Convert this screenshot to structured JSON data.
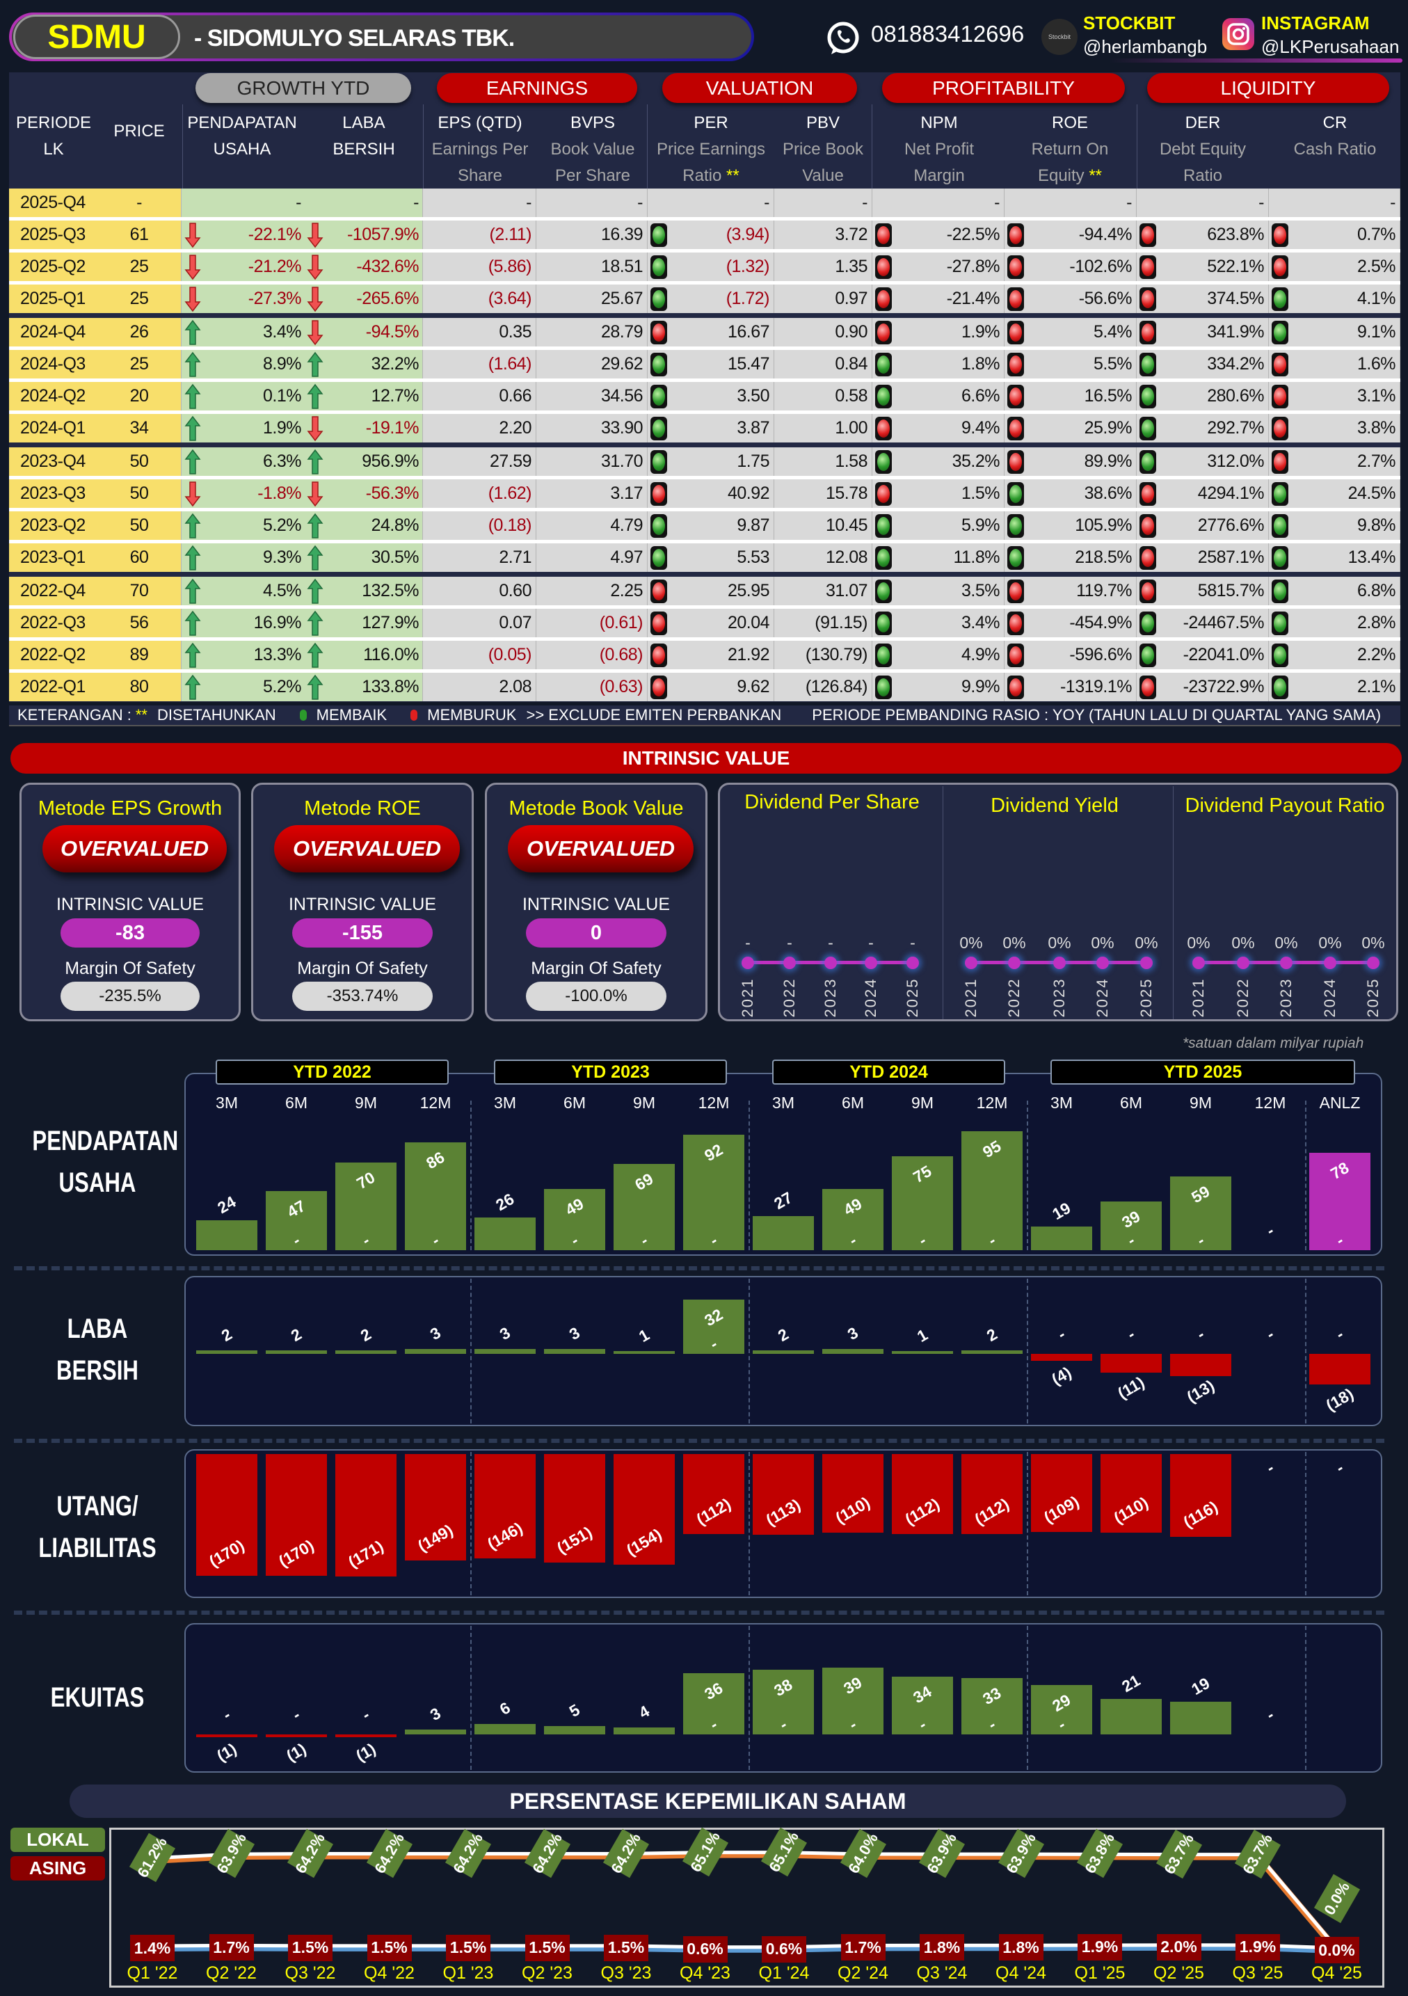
{
  "header": {
    "ticker": "SDMU",
    "company": "- SIDOMULYO SELARAS TBK.",
    "phone": "081883412696",
    "stockbit_logo": "Stockbit",
    "stockbit_label": "STOCKBIT",
    "stockbit_handle": "@herlambangb",
    "instagram_label": "INSTAGRAM",
    "instagram_handle": "@LKPerusahaan"
  },
  "table": {
    "groups": [
      "GROWTH YTD",
      "EARNINGS",
      "VALUATION",
      "PROFITABILITY",
      "LIQUIDITY"
    ],
    "columns": [
      {
        "main": "PERIODE",
        "sub1": "LK",
        "sub2": ""
      },
      {
        "main": "PRICE",
        "sub1": "",
        "sub2": ""
      },
      {
        "main": "PENDAPATAN",
        "sub1": "USAHA",
        "sub2": ""
      },
      {
        "main": "LABA",
        "sub1": "BERSIH",
        "sub2": ""
      },
      {
        "main": "EPS (QTD)",
        "sub1": "Earnings Per",
        "sub2": "Share"
      },
      {
        "main": "BVPS",
        "sub1": "Book Value",
        "sub2": "Per Share"
      },
      {
        "main": "PER",
        "sub1": "Price Earnings",
        "sub2": "Ratio",
        "mark": "**"
      },
      {
        "main": "PBV",
        "sub1": "Price Book",
        "sub2": "Value"
      },
      {
        "main": "NPM",
        "sub1": "Net Profit",
        "sub2": "Margin"
      },
      {
        "main": "ROE",
        "sub1": "Return On",
        "sub2": "Equity",
        "mark": "**"
      },
      {
        "main": "DER",
        "sub1": "Debt Equity",
        "sub2": "Ratio"
      },
      {
        "main": "CR",
        "sub1": "Cash Ratio",
        "sub2": ""
      }
    ],
    "rows": [
      {
        "period": "2025-Q4",
        "price": "-",
        "rev": "-",
        "rev_dir": "",
        "np": "-",
        "np_dir": "",
        "eps": "-",
        "bvps": "-",
        "per": "-",
        "pbv": "-",
        "npm": "-",
        "roe": "-",
        "der": "-",
        "cr": "-",
        "lights": ""
      },
      {
        "period": "2025-Q3",
        "price": "61",
        "rev": "-22.1%",
        "rev_dir": "down",
        "np": "-1057.9%",
        "np_dir": "down",
        "eps": "(2.11)",
        "bvps": "16.39",
        "per": "(3.94)",
        "pbv": "3.72",
        "npm": "-22.5%",
        "roe": "-94.4%",
        "der": "623.8%",
        "cr": "0.7%",
        "lights": "grrrr"
      },
      {
        "period": "2025-Q2",
        "price": "25",
        "rev": "-21.2%",
        "rev_dir": "down",
        "np": "-432.6%",
        "np_dir": "down",
        "eps": "(5.86)",
        "bvps": "18.51",
        "per": "(1.32)",
        "pbv": "1.35",
        "npm": "-27.8%",
        "roe": "-102.6%",
        "der": "522.1%",
        "cr": "2.5%",
        "lights": "grrrr"
      },
      {
        "period": "2025-Q1",
        "price": "25",
        "rev": "-27.3%",
        "rev_dir": "down",
        "np": "-265.6%",
        "np_dir": "down",
        "eps": "(3.64)",
        "bvps": "25.67",
        "per": "(1.72)",
        "pbv": "0.97",
        "npm": "-21.4%",
        "roe": "-56.6%",
        "der": "374.5%",
        "cr": "4.1%",
        "lights": "grrrg"
      },
      {
        "period": "2024-Q4",
        "price": "26",
        "rev": "3.4%",
        "rev_dir": "up",
        "np": "-94.5%",
        "np_dir": "down",
        "eps": "0.35",
        "bvps": "28.79",
        "per": "16.67",
        "pbv": "0.90",
        "npm": "1.9%",
        "roe": "5.4%",
        "der": "341.9%",
        "cr": "9.1%",
        "lights": "rrrrg"
      },
      {
        "period": "2024-Q3",
        "price": "25",
        "rev": "8.9%",
        "rev_dir": "up",
        "np": "32.2%",
        "np_dir": "up",
        "eps": "(1.64)",
        "bvps": "29.62",
        "per": "15.47",
        "pbv": "0.84",
        "npm": "1.8%",
        "roe": "5.5%",
        "der": "334.2%",
        "cr": "1.6%",
        "lights": "ggrgr"
      },
      {
        "period": "2024-Q2",
        "price": "20",
        "rev": "0.1%",
        "rev_dir": "up",
        "np": "12.7%",
        "np_dir": "up",
        "eps": "0.66",
        "bvps": "34.56",
        "per": "3.50",
        "pbv": "0.58",
        "npm": "6.6%",
        "roe": "16.5%",
        "der": "280.6%",
        "cr": "3.1%",
        "lights": "ggrgr"
      },
      {
        "period": "2024-Q1",
        "price": "34",
        "rev": "1.9%",
        "rev_dir": "up",
        "np": "-19.1%",
        "np_dir": "down",
        "eps": "2.20",
        "bvps": "33.90",
        "per": "3.87",
        "pbv": "1.00",
        "npm": "9.4%",
        "roe": "25.9%",
        "der": "292.7%",
        "cr": "3.8%",
        "lights": "grrgr"
      },
      {
        "period": "2023-Q4",
        "price": "50",
        "rev": "6.3%",
        "rev_dir": "up",
        "np": "956.9%",
        "np_dir": "up",
        "eps": "27.59",
        "bvps": "31.70",
        "per": "1.75",
        "pbv": "1.58",
        "npm": "35.2%",
        "roe": "89.9%",
        "der": "312.0%",
        "cr": "2.7%",
        "lights": "ggrgr"
      },
      {
        "period": "2023-Q3",
        "price": "50",
        "rev": "-1.8%",
        "rev_dir": "down",
        "np": "-56.3%",
        "np_dir": "down",
        "eps": "(1.62)",
        "bvps": "3.17",
        "per": "40.92",
        "pbv": "15.78",
        "npm": "1.5%",
        "roe": "38.6%",
        "der": "4294.1%",
        "cr": "24.5%",
        "lights": "rrgrg"
      },
      {
        "period": "2023-Q2",
        "price": "50",
        "rev": "5.2%",
        "rev_dir": "up",
        "np": "24.8%",
        "np_dir": "up",
        "eps": "(0.18)",
        "bvps": "4.79",
        "per": "9.87",
        "pbv": "10.45",
        "npm": "5.9%",
        "roe": "105.9%",
        "der": "2776.6%",
        "cr": "9.8%",
        "lights": "gggrg"
      },
      {
        "period": "2023-Q1",
        "price": "60",
        "rev": "9.3%",
        "rev_dir": "up",
        "np": "30.5%",
        "np_dir": "up",
        "eps": "2.71",
        "bvps": "4.97",
        "per": "5.53",
        "pbv": "12.08",
        "npm": "11.8%",
        "roe": "218.5%",
        "der": "2587.1%",
        "cr": "13.4%",
        "lights": "gggrg"
      },
      {
        "period": "2022-Q4",
        "price": "70",
        "rev": "4.5%",
        "rev_dir": "up",
        "np": "132.5%",
        "np_dir": "up",
        "eps": "0.60",
        "bvps": "2.25",
        "per": "25.95",
        "pbv": "31.07",
        "npm": "3.5%",
        "roe": "119.7%",
        "der": "5815.7%",
        "cr": "6.8%",
        "lights": "rgrrg"
      },
      {
        "period": "2022-Q3",
        "price": "56",
        "rev": "16.9%",
        "rev_dir": "up",
        "np": "127.9%",
        "np_dir": "up",
        "eps": "0.07",
        "bvps": "(0.61)",
        "per": "20.04",
        "pbv": "(91.15)",
        "npm": "3.4%",
        "roe": "-454.9%",
        "der": "-24467.5%",
        "cr": "2.8%",
        "lights": "rgrgg"
      },
      {
        "period": "2022-Q2",
        "price": "89",
        "rev": "13.3%",
        "rev_dir": "up",
        "np": "116.0%",
        "np_dir": "up",
        "eps": "(0.05)",
        "bvps": "(0.68)",
        "per": "21.92",
        "pbv": "(130.79)",
        "npm": "4.9%",
        "roe": "-596.6%",
        "der": "-22041.0%",
        "cr": "2.2%",
        "lights": "rgrgg"
      },
      {
        "period": "2022-Q1",
        "price": "80",
        "rev": "5.2%",
        "rev_dir": "up",
        "np": "133.8%",
        "np_dir": "up",
        "eps": "2.08",
        "bvps": "(0.63)",
        "per": "9.62",
        "pbv": "(126.84)",
        "npm": "9.9%",
        "roe": "-1319.1%",
        "der": "-23722.9%",
        "cr": "2.1%",
        "lights": "rgrrg"
      }
    ]
  },
  "legend": {
    "label": "KETERANGAN :",
    "mark": "**",
    "annualized": "DISETAHUNKAN",
    "improving": "MEMBAIK",
    "worsening": "MEMBURUK",
    "exclude": ">> EXCLUDE EMITEN PERBANKAN",
    "comparison": "PERIODE PEMBANDING RASIO : YOY (TAHUN LALU DI QUARTAL YANG SAMA)"
  },
  "intrinsic": {
    "title": "INTRINSIC VALUE",
    "cards": [
      {
        "title": "Metode EPS Growth",
        "status": "OVERVALUED",
        "iv_label": "INTRINSIC VALUE",
        "iv": "-83",
        "mos_label": "Margin Of Safety",
        "mos": "-235.5%"
      },
      {
        "title": "Metode ROE",
        "status": "OVERVALUED",
        "iv_label": "INTRINSIC VALUE",
        "iv": "-155",
        "mos_label": "Margin Of Safety",
        "mos": "-353.74%"
      },
      {
        "title": "Metode Book Value",
        "status": "OVERVALUED",
        "iv_label": "INTRINSIC VALUE",
        "iv": "0",
        "mos_label": "Margin Of Safety",
        "mos": "-100.0%"
      }
    ]
  },
  "dividends": [
    {
      "title": "Dividend Per Share",
      "years": [
        "2021",
        "2022",
        "2023",
        "2024",
        "2025"
      ],
      "values": [
        "-",
        "-",
        "-",
        "-",
        "-"
      ]
    },
    {
      "title": "Dividend Yield",
      "years": [
        "2021",
        "2022",
        "2023",
        "2024",
        "2025"
      ],
      "values": [
        "0%",
        "0%",
        "0%",
        "0%",
        "0%"
      ]
    },
    {
      "title": "Dividend Payout Ratio",
      "years": [
        "2021",
        "2022",
        "2023",
        "2024",
        "2025"
      ],
      "values": [
        "0%",
        "0%",
        "0%",
        "0%",
        "0%"
      ]
    }
  ],
  "charts_meta": {
    "note": "*satuan dalam milyar rupiah",
    "ytd_labels": [
      "YTD 2022",
      "YTD 2023",
      "YTD 2024",
      "YTD 2025"
    ],
    "columns": [
      "3M",
      "6M",
      "9M",
      "12M",
      "3M",
      "6M",
      "9M",
      "12M",
      "3M",
      "6M",
      "9M",
      "12M",
      "3M",
      "6M",
      "9M",
      "12M",
      "ANLZ"
    ],
    "empty_label": "-"
  },
  "chart_data": [
    {
      "type": "bar",
      "title": "PENDAPATAN USAHA",
      "title_lines": [
        "PENDAPATAN",
        "USAHA"
      ],
      "values": [
        24,
        47,
        70,
        86,
        26,
        49,
        69,
        92,
        27,
        49,
        75,
        95,
        19,
        39,
        59,
        null,
        78
      ],
      "labels": [
        "24",
        "47",
        "70",
        "86",
        "26",
        "49",
        "69",
        "92",
        "27",
        "49",
        "75",
        "95",
        "19",
        "39",
        "59",
        "-",
        "78"
      ],
      "colors": {
        "pos": "#5b8234",
        "neg": "#c00000",
        "anlz": "#b52db5"
      }
    },
    {
      "type": "bar",
      "title": "LABA BERSIH",
      "title_lines": [
        "LABA",
        "BERSIH"
      ],
      "values": [
        2,
        2,
        2,
        3,
        3,
        3,
        1,
        32,
        2,
        3,
        1,
        2,
        -4,
        -11,
        -13,
        null,
        -18
      ],
      "labels": [
        "2",
        "2",
        "2",
        "3",
        "3",
        "3",
        "1",
        "32",
        "2",
        "3",
        "1",
        "2",
        "(4)",
        "(11)",
        "(13)",
        "-",
        "(18)"
      ],
      "colors": {
        "pos": "#5b8234",
        "neg": "#c00000"
      }
    },
    {
      "type": "bar",
      "title": "UTANG/ LIABILITAS",
      "title_lines": [
        "UTANG/",
        "LIABILITAS"
      ],
      "values": [
        -170,
        -170,
        -171,
        -149,
        -146,
        -151,
        -154,
        -112,
        -113,
        -110,
        -112,
        -112,
        -109,
        -110,
        -116,
        null,
        null
      ],
      "labels": [
        "(170)",
        "(170)",
        "(171)",
        "(149)",
        "(146)",
        "(151)",
        "(154)",
        "(112)",
        "(113)",
        "(110)",
        "(112)",
        "(112)",
        "(109)",
        "(110)",
        "(116)",
        "-",
        "-"
      ],
      "colors": {
        "pos": "#5b8234",
        "neg": "#c00000"
      }
    },
    {
      "type": "bar",
      "title": "EKUITAS",
      "title_lines": [
        "EKUITAS"
      ],
      "values": [
        -1,
        -1,
        -1,
        3,
        6,
        5,
        4,
        36,
        38,
        39,
        34,
        33,
        29,
        21,
        19,
        null
      ],
      "labels": [
        "(1)",
        "(1)",
        "(1)",
        "3",
        "6",
        "5",
        "4",
        "36",
        "38",
        "39",
        "34",
        "33",
        "29",
        "21",
        "19",
        "-"
      ],
      "colors": {
        "pos": "#5b8234",
        "neg": "#c00000"
      }
    },
    {
      "type": "line",
      "title": "PERSENTASE KEPEMILIKAN SAHAM",
      "x": [
        "Q1 '22",
        "Q2 '22",
        "Q3 '22",
        "Q4 '22",
        "Q1 '23",
        "Q2 '23",
        "Q3 '23",
        "Q4 '23",
        "Q1 '24",
        "Q2 '24",
        "Q3 '24",
        "Q4 '24",
        "Q1 '25",
        "Q2 '25",
        "Q3 '25",
        "Q4 '25"
      ],
      "series": [
        {
          "name": "LOKAL",
          "color": "#5b8234",
          "values": [
            61.2,
            63.9,
            64.2,
            64.2,
            64.2,
            64.2,
            64.2,
            65.1,
            65.1,
            64.0,
            63.9,
            63.9,
            63.8,
            63.7,
            63.7,
            0.0
          ],
          "labels": [
            "61.2%",
            "63.9%",
            "64.2%",
            "64.2%",
            "64.2%",
            "64.2%",
            "64.2%",
            "65.1%",
            "65.1%",
            "64.0%",
            "63.9%",
            "63.9%",
            "63.8%",
            "63.7%",
            "63.7%",
            "0.0%"
          ]
        },
        {
          "name": "ASING",
          "color": "#8b0000",
          "values": [
            1.4,
            1.7,
            1.5,
            1.5,
            1.5,
            1.5,
            1.5,
            0.6,
            0.6,
            1.7,
            1.8,
            1.8,
            1.9,
            2.0,
            1.9,
            0.0
          ],
          "labels": [
            "1.4%",
            "1.7%",
            "1.5%",
            "1.5%",
            "1.5%",
            "1.5%",
            "1.5%",
            "0.6%",
            "0.6%",
            "1.7%",
            "1.8%",
            "1.8%",
            "1.9%",
            "2.0%",
            "1.9%",
            "0.0%"
          ]
        }
      ],
      "ylim": [
        0,
        70
      ]
    }
  ]
}
